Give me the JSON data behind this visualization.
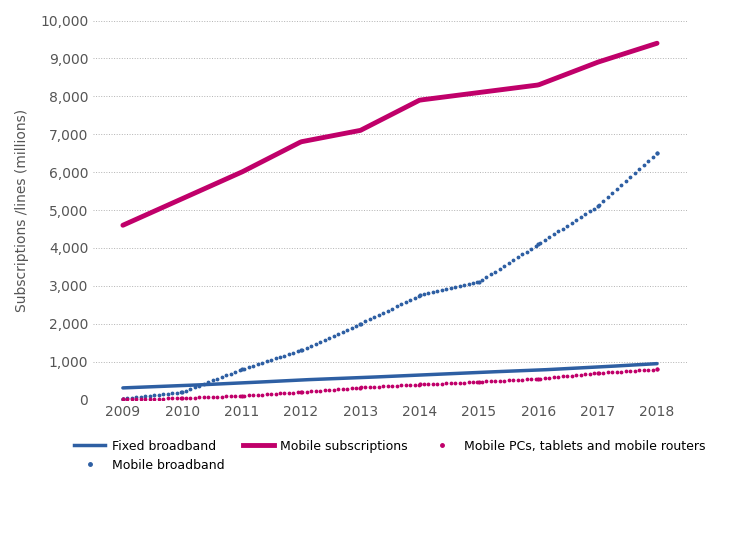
{
  "years": [
    2009,
    2010,
    2011,
    2012,
    2013,
    2014,
    2015,
    2016,
    2017,
    2018
  ],
  "fixed_broadband": [
    310,
    370,
    440,
    520,
    580,
    650,
    720,
    780,
    860,
    950
  ],
  "mobile_broadband": [
    20,
    200,
    800,
    1300,
    2000,
    2750,
    3100,
    4100,
    5100,
    6500
  ],
  "mobile_subscriptions": [
    4600,
    5300,
    6000,
    6800,
    7100,
    7900,
    8100,
    8300,
    8900,
    9400
  ],
  "mobile_pcs": [
    10,
    40,
    100,
    200,
    320,
    400,
    470,
    550,
    700,
    800
  ],
  "fixed_color": "#2e5fa3",
  "mobile_bb_color": "#2e5fa3",
  "mobile_sub_color": "#c0006a",
  "mobile_pcs_color": "#c0006a",
  "ylabel": "Subscriptions /lines (millions)",
  "ylim": [
    0,
    10000
  ],
  "yticks": [
    0,
    1000,
    2000,
    3000,
    4000,
    5000,
    6000,
    7000,
    8000,
    9000,
    10000
  ],
  "legend_fixed": "Fixed broadband",
  "legend_mobile_bb": "Mobile broadband",
  "legend_mobile_sub": "Mobile subscriptions",
  "legend_mobile_pcs": "Mobile PCs, tablets and mobile routers",
  "background_color": "#ffffff",
  "grid_color": "#aaaaaa"
}
